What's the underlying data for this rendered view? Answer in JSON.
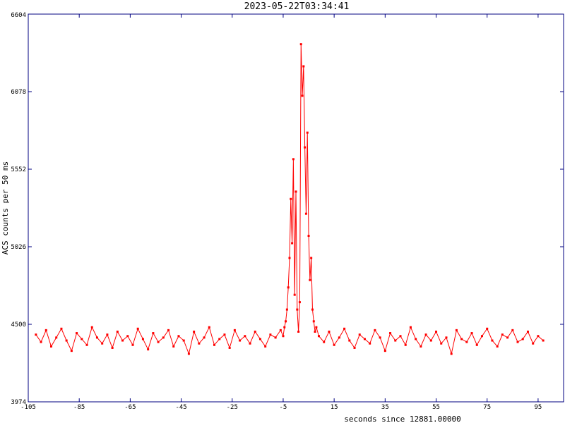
{
  "chart_data": {
    "type": "line",
    "title": "2023-05-22T03:34:41",
    "x_label": "seconds since 12881.00000",
    "y_label": "ACS counts per 50 ms",
    "color": "#ff0000",
    "axis_color": "#000080",
    "xlim": [
      -105,
      105
    ],
    "xticks": [
      -105,
      -85,
      -65,
      -45,
      -25,
      -5,
      15,
      35,
      55,
      75,
      95
    ],
    "ylim": [
      3974,
      6604
    ],
    "yticks": [
      3974,
      4500,
      5026,
      5552,
      6078,
      6604
    ],
    "x": [
      -102,
      -100,
      -98,
      -96,
      -94,
      -92,
      -90,
      -88,
      -86,
      -84,
      -82,
      -80,
      -78,
      -76,
      -74,
      -72,
      -70,
      -68,
      -66,
      -64,
      -62,
      -60,
      -58,
      -56,
      -54,
      -52,
      -50,
      -48,
      -46,
      -44,
      -42,
      -40,
      -38,
      -36,
      -34,
      -32,
      -30,
      -28,
      -26,
      -24,
      -22,
      -20,
      -18,
      -16,
      -14,
      -12,
      -10,
      -8,
      -6,
      -5,
      -4.5,
      -4,
      -3.5,
      -3,
      -2.5,
      -2,
      -1.5,
      -1,
      -0.5,
      0,
      0.5,
      1,
      1.5,
      2,
      2.5,
      3,
      3.5,
      4,
      4.5,
      5,
      5.5,
      6,
      6.5,
      7,
      7.5,
      8,
      9,
      11,
      13,
      15,
      17,
      19,
      21,
      23,
      25,
      27,
      29,
      31,
      33,
      35,
      37,
      39,
      41,
      43,
      45,
      47,
      49,
      51,
      53,
      55,
      57,
      59,
      61,
      63,
      65,
      67,
      69,
      71,
      73,
      75,
      77,
      79,
      81,
      83,
      85,
      87,
      89,
      91,
      93,
      95,
      97
    ],
    "values": [
      4430,
      4380,
      4460,
      4350,
      4410,
      4470,
      4390,
      4320,
      4440,
      4400,
      4360,
      4480,
      4410,
      4370,
      4430,
      4340,
      4450,
      4390,
      4420,
      4360,
      4470,
      4400,
      4330,
      4440,
      4380,
      4410,
      4460,
      4350,
      4420,
      4390,
      4300,
      4450,
      4370,
      4410,
      4480,
      4360,
      4400,
      4430,
      4340,
      4460,
      4390,
      4420,
      4370,
      4450,
      4400,
      4350,
      4430,
      4410,
      4460,
      4420,
      4480,
      4520,
      4600,
      4750,
      4950,
      5350,
      5050,
      5620,
      4700,
      5400,
      4600,
      4450,
      4650,
      6400,
      6050,
      6250,
      5700,
      5250,
      5800,
      5100,
      4800,
      4950,
      4600,
      4520,
      4450,
      4480,
      4420,
      4380,
      4450,
      4360,
      4410,
      4470,
      4390,
      4340,
      4430,
      4400,
      4370,
      4460,
      4410,
      4320,
      4440,
      4390,
      4420,
      4360,
      4480,
      4400,
      4350,
      4430,
      4390,
      4450,
      4370,
      4410,
      4300,
      4460,
      4400,
      4380,
      4440,
      4360,
      4420,
      4470,
      4390,
      4350,
      4430,
      4410,
      4460,
      4380,
      4400,
      4450,
      4370,
      4420,
      4390
    ]
  }
}
